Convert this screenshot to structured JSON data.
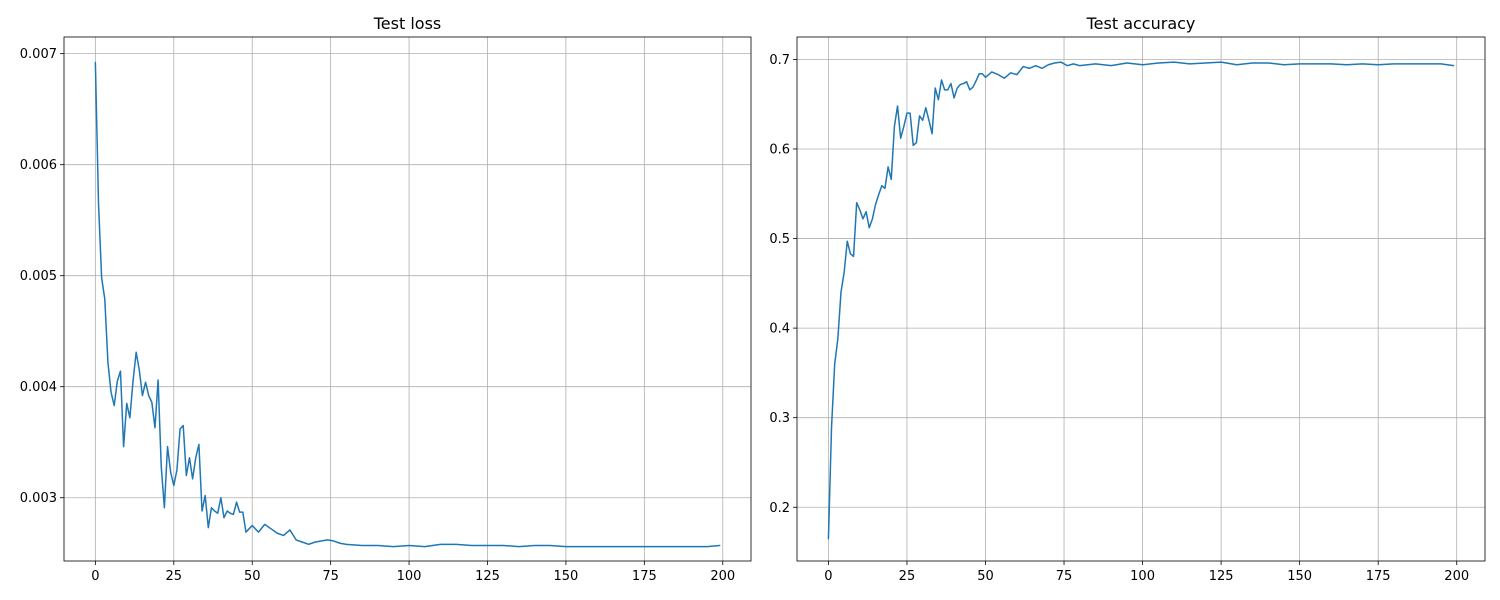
{
  "chart_data": [
    {
      "type": "line",
      "title": "Test loss",
      "xlabel": "",
      "ylabel": "",
      "xlim": [
        -10,
        209
      ],
      "ylim": [
        0.00243,
        0.00715
      ],
      "x_ticks": [
        0,
        25,
        50,
        75,
        100,
        125,
        150,
        175,
        200
      ],
      "y_ticks": [
        0.003,
        0.004,
        0.005,
        0.006,
        0.007
      ],
      "x_tick_labels": [
        "0",
        "25",
        "50",
        "75",
        "100",
        "125",
        "150",
        "175",
        "200"
      ],
      "y_tick_labels": [
        "0.003",
        "0.004",
        "0.005",
        "0.006",
        "0.007"
      ],
      "grid": true,
      "line_color": "#1f77b4",
      "series": [
        {
          "x": [
            0,
            1,
            2,
            3,
            4,
            5,
            6,
            7,
            8,
            9,
            10,
            11,
            12,
            13,
            14,
            15,
            16,
            17,
            18,
            19,
            20,
            21,
            22,
            23,
            24,
            25,
            26,
            27,
            28,
            29,
            30,
            31,
            32,
            33,
            34,
            35,
            36,
            37,
            38,
            39,
            40,
            41,
            42,
            43,
            44,
            45,
            46,
            47,
            48,
            49,
            50,
            52,
            54,
            56,
            58,
            60,
            62,
            64,
            66,
            68,
            70,
            72,
            74,
            76,
            78,
            80,
            85,
            90,
            95,
            100,
            105,
            110,
            115,
            120,
            125,
            130,
            135,
            140,
            145,
            150,
            155,
            160,
            165,
            170,
            175,
            180,
            185,
            190,
            195,
            199
          ],
          "values": [
            0.00692,
            0.00565,
            0.00498,
            0.00479,
            0.00422,
            0.00395,
            0.00383,
            0.00405,
            0.00414,
            0.00346,
            0.00385,
            0.00372,
            0.00405,
            0.00431,
            0.00415,
            0.00392,
            0.00404,
            0.00392,
            0.00386,
            0.00363,
            0.00406,
            0.00328,
            0.00291,
            0.00346,
            0.00323,
            0.00311,
            0.00325,
            0.00362,
            0.00365,
            0.0032,
            0.00336,
            0.00317,
            0.00336,
            0.00348,
            0.00288,
            0.00302,
            0.00273,
            0.00291,
            0.00288,
            0.00286,
            0.003,
            0.00282,
            0.00288,
            0.00286,
            0.00285,
            0.00296,
            0.00287,
            0.00287,
            0.00269,
            0.00272,
            0.00275,
            0.00269,
            0.00276,
            0.00272,
            0.00268,
            0.00266,
            0.00271,
            0.00262,
            0.0026,
            0.00258,
            0.0026,
            0.00261,
            0.00262,
            0.00261,
            0.00259,
            0.00258,
            0.00257,
            0.00257,
            0.00256,
            0.00257,
            0.00256,
            0.00258,
            0.00258,
            0.00257,
            0.00257,
            0.00257,
            0.00256,
            0.00257,
            0.00257,
            0.00256,
            0.00256,
            0.00256,
            0.00256,
            0.00256,
            0.00256,
            0.00256,
            0.00256,
            0.00256,
            0.00256,
            0.00257
          ]
        }
      ]
    },
    {
      "type": "line",
      "title": "Test accuracy",
      "xlabel": "",
      "ylabel": "",
      "xlim": [
        -10,
        209
      ],
      "ylim": [
        0.14,
        0.725
      ],
      "x_ticks": [
        0,
        25,
        50,
        75,
        100,
        125,
        150,
        175,
        200
      ],
      "y_ticks": [
        0.2,
        0.3,
        0.4,
        0.5,
        0.6,
        0.7
      ],
      "x_tick_labels": [
        "0",
        "25",
        "50",
        "75",
        "100",
        "125",
        "150",
        "175",
        "200"
      ],
      "y_tick_labels": [
        "0.2",
        "0.3",
        "0.4",
        "0.5",
        "0.6",
        "0.7"
      ],
      "grid": true,
      "line_color": "#1f77b4",
      "series": [
        {
          "x": [
            0,
            1,
            2,
            3,
            4,
            5,
            6,
            7,
            8,
            9,
            10,
            11,
            12,
            13,
            14,
            15,
            16,
            17,
            18,
            19,
            20,
            21,
            22,
            23,
            24,
            25,
            26,
            27,
            28,
            29,
            30,
            31,
            32,
            33,
            34,
            35,
            36,
            37,
            38,
            39,
            40,
            41,
            42,
            43,
            44,
            45,
            46,
            47,
            48,
            49,
            50,
            52,
            54,
            56,
            58,
            60,
            62,
            64,
            66,
            68,
            70,
            72,
            74,
            76,
            78,
            80,
            85,
            90,
            95,
            100,
            105,
            110,
            115,
            120,
            125,
            130,
            135,
            140,
            145,
            150,
            155,
            160,
            165,
            170,
            175,
            180,
            185,
            190,
            195,
            199
          ],
          "values": [
            0.165,
            0.29,
            0.36,
            0.388,
            0.44,
            0.462,
            0.497,
            0.483,
            0.48,
            0.54,
            0.532,
            0.522,
            0.53,
            0.512,
            0.522,
            0.538,
            0.549,
            0.559,
            0.556,
            0.58,
            0.566,
            0.625,
            0.648,
            0.612,
            0.625,
            0.64,
            0.64,
            0.604,
            0.607,
            0.637,
            0.632,
            0.646,
            0.632,
            0.617,
            0.668,
            0.655,
            0.677,
            0.666,
            0.666,
            0.673,
            0.657,
            0.668,
            0.672,
            0.673,
            0.675,
            0.666,
            0.669,
            0.676,
            0.684,
            0.684,
            0.68,
            0.686,
            0.683,
            0.679,
            0.685,
            0.683,
            0.692,
            0.69,
            0.693,
            0.69,
            0.694,
            0.696,
            0.697,
            0.693,
            0.695,
            0.693,
            0.695,
            0.693,
            0.696,
            0.694,
            0.696,
            0.697,
            0.695,
            0.696,
            0.697,
            0.694,
            0.696,
            0.696,
            0.694,
            0.695,
            0.695,
            0.695,
            0.694,
            0.695,
            0.694,
            0.695,
            0.695,
            0.695,
            0.695,
            0.693
          ]
        }
      ]
    }
  ]
}
